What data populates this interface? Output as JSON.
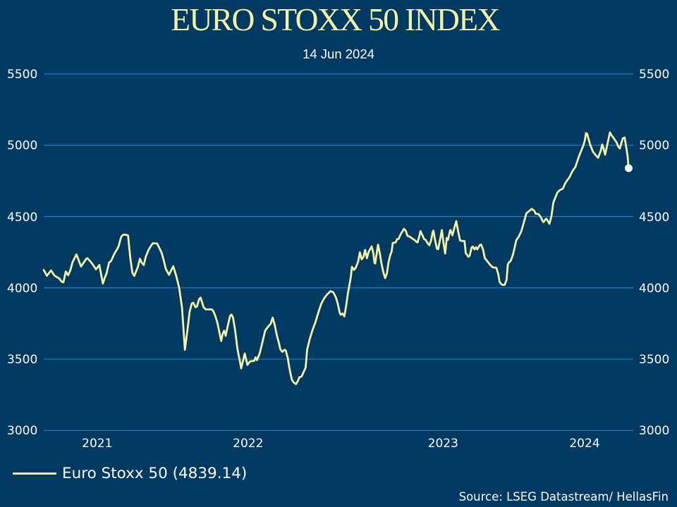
{
  "title": "EURO STOXX 50 INDEX",
  "subtitle": "14 Jun 2024",
  "source": "Source: LSEG Datastream/ HellasFin",
  "legend": {
    "label": "Euro Stoxx 50 (4839.14)"
  },
  "colors": {
    "background": "#003A63",
    "gridline": "#1B7EC0",
    "series_line": "#F5F2A3",
    "title_text": "#F5F2A3",
    "axis_text": "#FFFFFF",
    "end_marker": "#FFFFFF"
  },
  "chart_data": {
    "type": "line",
    "title": "EURO STOXX 50 INDEX",
    "subtitle": "14 Jun 2024",
    "series_name": "Euro Stoxx 50",
    "last_value": 4839.14,
    "ylim": [
      3000,
      5500
    ],
    "y_ticks": [
      5500,
      5000,
      4500,
      4000,
      3500,
      3000
    ],
    "x_ticks": [
      2021,
      2022,
      2023,
      2024
    ],
    "x_start_year": 2021.452,
    "x_end_year": 2024.4753,
    "grid": "horizontal",
    "legend_position": "bottom-left",
    "points": [
      [
        2021.452,
        4124.8
      ],
      [
        2021.4683,
        4084.8
      ],
      [
        2021.4893,
        4121.9
      ],
      [
        2021.5081,
        4084.8
      ],
      [
        2021.5316,
        4065.6
      ],
      [
        2021.5461,
        4040.9
      ],
      [
        2021.5533,
        4039.4
      ],
      [
        2021.5653,
        4115.0
      ],
      [
        2021.5768,
        4088.8
      ],
      [
        2021.5877,
        4119.9
      ],
      [
        2021.6004,
        4181.6
      ],
      [
        2021.6199,
        4234.4
      ],
      [
        2021.6434,
        4150.0
      ],
      [
        2021.6438,
        4150.5
      ],
      [
        2021.6713,
        4205.3
      ],
      [
        2021.6764,
        4206.8
      ],
      [
        2021.6941,
        4181.1
      ],
      [
        2021.714,
        4143.6
      ],
      [
        2021.7191,
        4129.8
      ],
      [
        2021.7241,
        4136.7
      ],
      [
        2021.7368,
        4160.4
      ],
      [
        2021.7553,
        4030.5
      ],
      [
        2021.7643,
        4068.0
      ],
      [
        2021.7744,
        4102.1
      ],
      [
        2021.7871,
        4177.7
      ],
      [
        2021.7947,
        4184.6
      ],
      [
        2021.7998,
        4194.9
      ],
      [
        2021.8095,
        4225.6
      ],
      [
        2021.8197,
        4253.2
      ],
      [
        2021.8298,
        4273.9
      ],
      [
        2021.8374,
        4297.6
      ],
      [
        2021.8425,
        4325.3
      ],
      [
        2021.8497,
        4359.4
      ],
      [
        2021.8598,
        4373.2
      ],
      [
        2021.875,
        4372.2
      ],
      [
        2021.8844,
        4366.8
      ],
      [
        2021.8957,
        4212.2
      ],
      [
        2021.9065,
        4106.6
      ],
      [
        2021.9163,
        4083.8
      ],
      [
        2021.9344,
        4144.6
      ],
      [
        2021.9452,
        4204.8
      ],
      [
        2021.9536,
        4178.2
      ],
      [
        2021.9648,
        4159.4
      ],
      [
        2021.9756,
        4219.6
      ],
      [
        2021.9894,
        4265.1
      ],
      [
        2022.0006,
        4291.2
      ],
      [
        2022.0115,
        4313.0
      ],
      [
        2022.0335,
        4310.5
      ],
      [
        2022.0448,
        4279.9
      ],
      [
        2022.056,
        4249.8
      ],
      [
        2022.0668,
        4196.9
      ],
      [
        2022.078,
        4133.2
      ],
      [
        2022.0943,
        4091.7
      ],
      [
        2022.1164,
        4152.0
      ],
      [
        2022.1331,
        4076.4
      ],
      [
        2022.1468,
        3998.9
      ],
      [
        2022.1613,
        3860.7
      ],
      [
        2022.1761,
        3565.9
      ],
      [
        2022.1888,
        3699.7
      ],
      [
        2022.2004,
        3833.5
      ],
      [
        2022.2116,
        3890.3
      ],
      [
        2022.2192,
        3895.2
      ],
      [
        2022.2304,
        3864.1
      ],
      [
        2022.238,
        3869.5
      ],
      [
        2022.2492,
        3920.9
      ],
      [
        2022.2568,
        3931.3
      ],
      [
        2022.2717,
        3864.1
      ],
      [
        2022.2832,
        3848.8
      ],
      [
        2022.3133,
        3848.8
      ],
      [
        2022.3209,
        3838.4
      ],
      [
        2022.3321,
        3802.4
      ],
      [
        2022.3433,
        3751.0
      ],
      [
        2022.3509,
        3699.7
      ],
      [
        2022.3621,
        3627.6
      ],
      [
        2022.3697,
        3678.9
      ],
      [
        2022.3773,
        3699.7
      ],
      [
        2022.3849,
        3663.6
      ],
      [
        2022.3961,
        3735.7
      ],
      [
        2022.4074,
        3802.4
      ],
      [
        2022.415,
        3812.8
      ],
      [
        2022.4226,
        3792.5
      ],
      [
        2022.4338,
        3699.7
      ],
      [
        2022.4454,
        3571.3
      ],
      [
        2022.458,
        3483.9
      ],
      [
        2022.4645,
        3435.5
      ],
      [
        2022.483,
        3539.7
      ],
      [
        2022.4964,
        3459.7
      ],
      [
        2022.5101,
        3483.9
      ],
      [
        2022.5315,
        3488.3
      ],
      [
        2022.5384,
        3512.5
      ],
      [
        2022.5456,
        3493.3
      ],
      [
        2022.5597,
        3541.2
      ],
      [
        2022.5735,
        3618.2
      ],
      [
        2022.5876,
        3699.7
      ],
      [
        2022.5948,
        3714.0
      ],
      [
        2022.6089,
        3738.2
      ],
      [
        2022.6158,
        3747.6
      ],
      [
        2022.6263,
        3791.0
      ],
      [
        2022.6368,
        3738.2
      ],
      [
        2022.6476,
        3666.1
      ],
      [
        2022.6581,
        3613.3
      ],
      [
        2022.665,
        3570.3
      ],
      [
        2022.6755,
        3551.1
      ],
      [
        2022.6864,
        3565.4
      ],
      [
        2022.6932,
        3560.4
      ],
      [
        2022.7037,
        3507.6
      ],
      [
        2022.711,
        3445.4
      ],
      [
        2022.7178,
        3397.5
      ],
      [
        2022.7251,
        3354.0
      ],
      [
        2022.7356,
        3334.8
      ],
      [
        2022.7461,
        3325.4
      ],
      [
        2022.7566,
        3349.6
      ],
      [
        2022.7634,
        3373.3
      ],
      [
        2022.7743,
        3378.2
      ],
      [
        2022.7953,
        3440.5
      ],
      [
        2022.8029,
        3565.9
      ],
      [
        2022.817,
        3644.4
      ],
      [
        2022.8315,
        3709.6
      ],
      [
        2022.846,
        3761.4
      ],
      [
        2022.8601,
        3826.6
      ],
      [
        2022.8745,
        3885.3
      ],
      [
        2022.8887,
        3924.4
      ],
      [
        2022.9031,
        3950.5
      ],
      [
        2022.9223,
        3976.7
      ],
      [
        2022.9364,
        3969.8
      ],
      [
        2022.9509,
        3930.8
      ],
      [
        2022.9603,
        3885.3
      ],
      [
        2022.9697,
        3826.6
      ],
      [
        2022.9748,
        3811.3
      ],
      [
        2022.9842,
        3820.2
      ],
      [
        2022.9936,
        3800.4
      ],
      [
        2023.0034,
        3878.9
      ],
      [
        2023.0128,
        3969.8
      ],
      [
        2023.0226,
        4041.9
      ],
      [
        2023.0273,
        4080.9
      ],
      [
        2023.0323,
        4147.5
      ],
      [
        2023.0432,
        4125.8
      ],
      [
        2023.0522,
        4142.1
      ],
      [
        2023.0642,
        4183.1
      ],
      [
        2023.0732,
        4249.3
      ],
      [
        2023.0823,
        4199.9
      ],
      [
        2023.0913,
        4216.2
      ],
      [
        2023.1004,
        4265.6
      ],
      [
        2023.1094,
        4207.8
      ],
      [
        2023.1184,
        4253.2
      ],
      [
        2023.1336,
        4290.2
      ],
      [
        2023.1427,
        4240.9
      ],
      [
        2023.1485,
        4175.2
      ],
      [
        2023.1517,
        4170.7
      ],
      [
        2023.1666,
        4302.6
      ],
      [
        2023.1756,
        4240.9
      ],
      [
        2023.1847,
        4166.8
      ],
      [
        2023.1937,
        4109.0
      ],
      [
        2023.2028,
        4068.0
      ],
      [
        2023.2118,
        4101.1
      ],
      [
        2023.2209,
        4183.1
      ],
      [
        2023.2299,
        4232.5
      ],
      [
        2023.2361,
        4253.2
      ],
      [
        2023.2422,
        4314.9
      ],
      [
        2023.257,
        4318.9
      ],
      [
        2023.2632,
        4339.6
      ],
      [
        2023.2722,
        4343.6
      ],
      [
        2023.2813,
        4372.7
      ],
      [
        2023.2903,
        4392.9
      ],
      [
        2023.2994,
        4413.7
      ],
      [
        2023.3084,
        4401.3
      ],
      [
        2023.3175,
        4364.3
      ],
      [
        2023.3265,
        4360.4
      ],
      [
        2023.3356,
        4352.0
      ],
      [
        2023.3446,
        4343.6
      ],
      [
        2023.3537,
        4335.7
      ],
      [
        2023.3627,
        4323.3
      ],
      [
        2023.3689,
        4318.9
      ],
      [
        2023.3779,
        4360.4
      ],
      [
        2023.3837,
        4397.4
      ],
      [
        2023.3928,
        4372.7
      ],
      [
        2023.4018,
        4343.6
      ],
      [
        2023.4108,
        4335.7
      ],
      [
        2023.4199,
        4314.9
      ],
      [
        2023.4289,
        4298.6
      ],
      [
        2023.438,
        4331.2
      ],
      [
        2023.447,
        4392.9
      ],
      [
        2023.4503,
        4401.3
      ],
      [
        2023.4593,
        4331.2
      ],
      [
        2023.4684,
        4273.9
      ],
      [
        2023.4749,
        4271.5
      ],
      [
        2023.4937,
        4405.3
      ],
      [
        2023.502,
        4314.4
      ],
      [
        2023.5107,
        4240.4
      ],
      [
        2023.5187,
        4350.0
      ],
      [
        2023.5252,
        4336.7
      ],
      [
        2023.535,
        4398.9
      ],
      [
        2023.5382,
        4405.3
      ],
      [
        2023.548,
        4367.8
      ],
      [
        2023.5578,
        4421.1
      ],
      [
        2023.5675,
        4467.5
      ],
      [
        2023.5773,
        4394.4
      ],
      [
        2023.5871,
        4332.2
      ],
      [
        2023.5979,
        4328.8
      ],
      [
        2023.6099,
        4328.8
      ],
      [
        2023.6164,
        4242.8
      ],
      [
        2023.6298,
        4218.2
      ],
      [
        2023.6363,
        4225.1
      ],
      [
        2023.6461,
        4282.8
      ],
      [
        2023.6526,
        4289.3
      ],
      [
        2023.6609,
        4269.5
      ],
      [
        2023.6689,
        4284.8
      ],
      [
        2023.6754,
        4269.5
      ],
      [
        2023.6884,
        4300.6
      ],
      [
        2023.6949,
        4303.6
      ],
      [
        2023.7047,
        4269.5
      ],
      [
        2023.7145,
        4207.3
      ],
      [
        2023.7275,
        4185.1
      ],
      [
        2023.7405,
        4162.8
      ],
      [
        2023.7539,
        4144.6
      ],
      [
        2023.7637,
        4142.1
      ],
      [
        2023.7734,
        4140.1
      ],
      [
        2023.7832,
        4095.7
      ],
      [
        2023.7897,
        4042.4
      ],
      [
        2023.7995,
        4024.6
      ],
      [
        2023.806,
        4020.6
      ],
      [
        2023.8158,
        4020.6
      ],
      [
        2023.8256,
        4055.7
      ],
      [
        2023.8321,
        4162.8
      ],
      [
        2023.8386,
        4180.6
      ],
      [
        2023.8451,
        4185.1
      ],
      [
        2023.852,
        4207.3
      ],
      [
        2023.8585,
        4234.0
      ],
      [
        2023.865,
        4269.5
      ],
      [
        2023.8748,
        4332.2
      ],
      [
        2023.8813,
        4345.5
      ],
      [
        2023.8878,
        4358.9
      ],
      [
        2023.9019,
        4398.9
      ],
      [
        2023.9128,
        4453.2
      ],
      [
        2023.9272,
        4522.8
      ],
      [
        2023.9547,
        4553.4
      ],
      [
        2023.9674,
        4540.1
      ],
      [
        2023.975,
        4519.4
      ],
      [
        2023.9899,
        4516.9
      ],
      [
        2024.0025,
        4491.7
      ],
      [
        2024.0101,
        4468.0
      ],
      [
        2024.0152,
        4461.1
      ],
      [
        2024.0253,
        4481.3
      ],
      [
        2024.03,
        4484.8
      ],
      [
        2024.0402,
        4461.1
      ],
      [
        2024.0452,
        4448.7
      ],
      [
        2024.0554,
        4502.1
      ],
      [
        2024.0655,
        4598.4
      ],
      [
        2024.0745,
        4630.5
      ],
      [
        2024.0865,
        4669.0
      ],
      [
        2024.0984,
        4685.3
      ],
      [
        2024.1067,
        4690.7
      ],
      [
        2024.1147,
        4696.1
      ],
      [
        2024.1227,
        4723.8
      ],
      [
        2024.1346,
        4750.9
      ],
      [
        2024.1469,
        4773.2
      ],
      [
        2024.1549,
        4794.9
      ],
      [
        2024.1628,
        4817.1
      ],
      [
        2024.1708,
        4833.4
      ],
      [
        2024.1791,
        4849.7
      ],
      [
        2024.1871,
        4882.8
      ],
      [
        2024.195,
        4915.9
      ],
      [
        2024.203,
        4943.0
      ],
      [
        2024.211,
        4970.7
      ],
      [
        2024.2193,
        4997.8
      ],
      [
        2024.2272,
        5036.3
      ],
      [
        2024.233,
        5085.2
      ],
      [
        2024.2388,
        5079.8
      ],
      [
        2024.254,
        5005.2
      ],
      [
        2024.2689,
        4953.9
      ],
      [
        2024.2841,
        4928.2
      ],
      [
        2024.2953,
        4912.4
      ],
      [
        2024.3087,
        4961.3
      ],
      [
        2024.3159,
        5005.2
      ],
      [
        2024.3217,
        4984.5
      ],
      [
        2024.3311,
        4933.1
      ],
      [
        2024.3557,
        5090.2
      ],
      [
        2024.3651,
        5067.0
      ],
      [
        2024.3727,
        5054.1
      ],
      [
        2024.38,
        5038.8
      ],
      [
        2024.3897,
        5020.5
      ],
      [
        2024.3988,
        4989.9
      ],
      [
        2024.4064,
        4977.1
      ],
      [
        2024.4216,
        5048.7
      ],
      [
        2024.431,
        5054.1
      ],
      [
        2024.4404,
        4977.1
      ],
      [
        2024.4462,
        4922.8
      ],
      [
        2024.4516,
        4839.14
      ]
    ]
  }
}
